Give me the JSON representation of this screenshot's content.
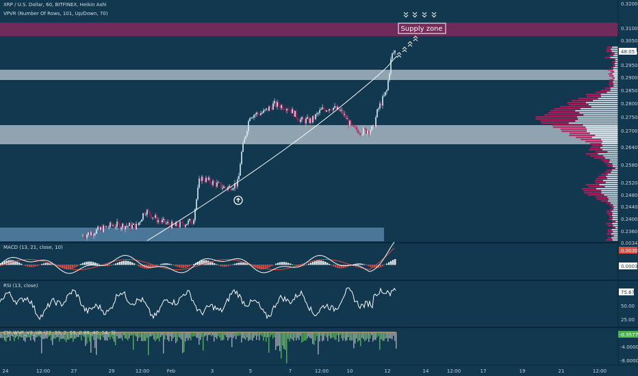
{
  "header": {
    "symbol_line": "XRP / U.S. Dollar, 60, BITFINEX, Heikin Ashi",
    "indicator_line": "VPVR (Number Of Rows, 101, Up/Down, 70)"
  },
  "annotation": {
    "supply_zone_label": "Supply zone"
  },
  "colors": {
    "background": "#12384f",
    "up_candle": "#d8f0f7",
    "down_candle": "#c2185b",
    "supply_zone": "#7a2a5a",
    "support_band": "#b9c7d0",
    "macd_line": "#ffffff",
    "signal_line": "#e64a3c",
    "wvf_up": "#4caf50",
    "wvf_down": "#9aa5ad"
  },
  "price_axis": {
    "ticks": [
      "0.32000",
      "0.31000",
      "0.30500",
      "0.30000",
      "0.29500",
      "0.29000",
      "0.28500",
      "0.28000",
      "0.27500",
      "0.27000",
      "0.26400",
      "0.25800",
      "0.25200",
      "0.24800",
      "0.24400",
      "0.24000",
      "0.23600"
    ],
    "current_price": "48:05"
  },
  "macd": {
    "label": "MACD (13, 21, close, 10)",
    "values": [
      "0.00342",
      "0.00308",
      "0.00032"
    ]
  },
  "rsi": {
    "label": "RSI (13, close)",
    "levels": [
      "75.67",
      "50.00",
      "25.00"
    ]
  },
  "wvf": {
    "label": "CM_WVF_V3_Ult (22, 20, 2, 50, 0.88, 40, 14, 3)",
    "values": [
      "-0.55771",
      "-4.00000",
      "-8.00000"
    ]
  },
  "time_axis": [
    "24",
    "12:00",
    "27",
    "29",
    "12:00",
    "Feb",
    "3",
    "5",
    "7",
    "12:00",
    "10",
    "12",
    "14",
    "12:00",
    "17",
    "19",
    "21",
    "12:00"
  ],
  "chart_data": [
    {
      "type": "candlestick",
      "title": "XRP / U.S. Dollar, 60, BITFINEX, Heikin Ashi",
      "style": "Heikin Ashi",
      "y_scale": "price (USD)",
      "ylim": [
        0.234,
        0.322
      ],
      "price_key_points": [
        {
          "x": "29",
          "y": 0.238
        },
        {
          "x": "12:00",
          "y": 0.241
        },
        {
          "x": "Feb",
          "y": 0.257
        },
        {
          "x": "3",
          "y": 0.253
        },
        {
          "x": "5",
          "y": 0.262
        },
        {
          "x": "5",
          "y": 0.281
        },
        {
          "x": "7",
          "y": 0.282
        },
        {
          "x": "12:00",
          "y": 0.278
        },
        {
          "x": "10",
          "y": 0.272
        },
        {
          "x": "12",
          "y": 0.279
        },
        {
          "x": "12",
          "y": 0.303
        }
      ],
      "zones": [
        {
          "kind": "supply",
          "low": 0.3055,
          "high": 0.3102,
          "label": "Supply zone"
        },
        {
          "kind": "support",
          "low": 0.2898,
          "high": 0.2925
        },
        {
          "kind": "support",
          "low": 0.2645,
          "high": 0.2705
        },
        {
          "kind": "support",
          "low": 0.2345,
          "high": 0.2372
        }
      ],
      "volume_profile": {
        "type": "horizontal histogram",
        "rows": 101,
        "split": "Up/Down",
        "peak_price": 0.278
      },
      "trendline": "curved rising from bottom-left to recent high"
    },
    {
      "type": "line",
      "title": "MACD (13, 21, close, 10)",
      "series": [
        {
          "name": "MACD",
          "last": 0.00342
        },
        {
          "name": "Signal",
          "last": 0.00308
        }
      ],
      "histogram": "white/red bars around zero"
    },
    {
      "type": "line",
      "title": "RSI (13, close)",
      "levels": [
        25,
        50,
        75.67
      ],
      "last": 75.67,
      "range": [
        20,
        80
      ]
    },
    {
      "type": "bar",
      "title": "CM_WVF_V3_Ult (22, 20, 2, 50, 0.88, 40, 14, 3)",
      "last": -0.55771,
      "ylim": [
        -8,
        0
      ]
    }
  ]
}
